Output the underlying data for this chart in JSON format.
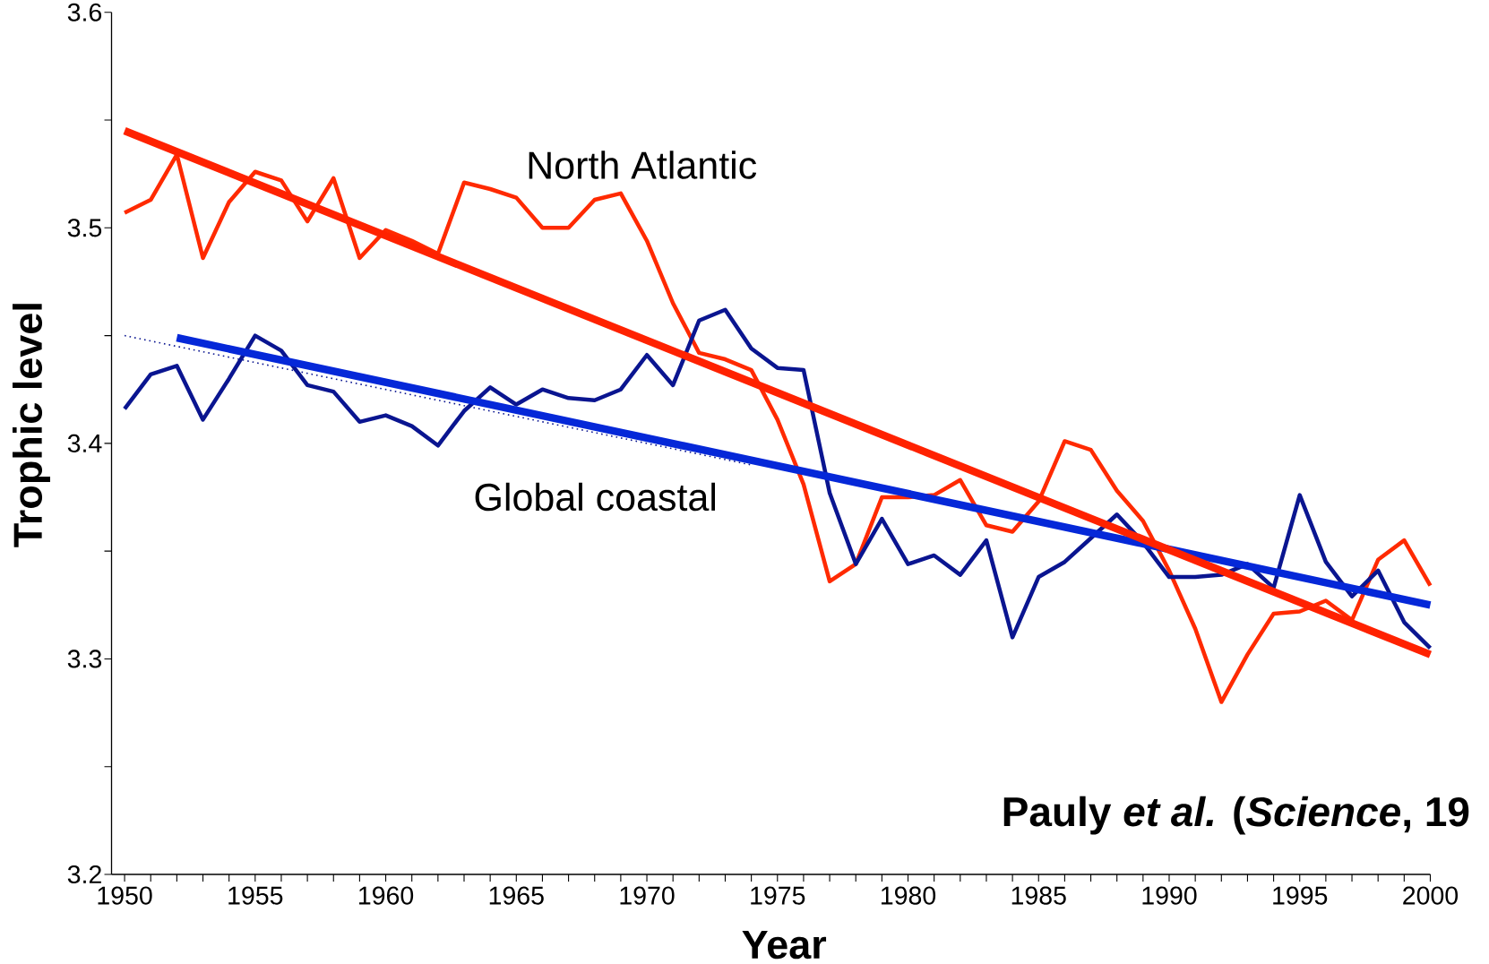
{
  "chart_data": {
    "type": "line",
    "xlabel": "Year",
    "ylabel": "Trophic level",
    "annotations": [
      "Pauly *et al.* (*Science*, 19"
    ],
    "x": [
      1950,
      1951,
      1952,
      1953,
      1954,
      1955,
      1956,
      1957,
      1958,
      1959,
      1960,
      1961,
      1962,
      1963,
      1964,
      1965,
      1966,
      1967,
      1968,
      1969,
      1970,
      1971,
      1972,
      1973,
      1974,
      1975,
      1976,
      1977,
      1978,
      1979,
      1980,
      1981,
      1982,
      1983,
      1984,
      1985,
      1986,
      1987,
      1988,
      1989,
      1990,
      1991,
      1992,
      1993,
      1994,
      1995,
      1996,
      1997,
      1998,
      1999,
      2000
    ],
    "series": [
      {
        "name": "North Atlantic",
        "color": "#ff2a00",
        "values": [
          3.507,
          3.513,
          3.534,
          3.486,
          3.512,
          3.526,
          3.522,
          3.503,
          3.523,
          3.486,
          3.499,
          3.494,
          3.488,
          3.521,
          3.518,
          3.514,
          3.5,
          3.5,
          3.513,
          3.516,
          3.494,
          3.465,
          3.442,
          3.439,
          3.434,
          3.411,
          3.381,
          3.336,
          3.344,
          3.375,
          3.375,
          3.376,
          3.383,
          3.362,
          3.359,
          3.373,
          3.401,
          3.397,
          3.378,
          3.364,
          3.341,
          3.314,
          3.28,
          3.302,
          3.321,
          3.322,
          3.327,
          3.318,
          3.346,
          3.355,
          3.334
        ]
      },
      {
        "name": "Global coastal",
        "color": "#0a1590",
        "values": [
          3.416,
          3.432,
          3.436,
          3.411,
          3.43,
          3.45,
          3.443,
          3.427,
          3.424,
          3.41,
          3.413,
          3.408,
          3.399,
          3.415,
          3.426,
          3.418,
          3.425,
          3.421,
          3.42,
          3.425,
          3.441,
          3.427,
          3.457,
          3.462,
          3.444,
          3.435,
          3.434,
          3.377,
          3.344,
          3.365,
          3.344,
          3.348,
          3.339,
          3.355,
          3.31,
          3.338,
          3.345,
          3.356,
          3.367,
          3.354,
          3.338,
          3.338,
          3.339,
          3.344,
          3.333,
          3.376,
          3.345,
          3.329,
          3.341,
          3.317,
          3.305
        ]
      },
      {
        "type": "line",
        "color": "#0a1590",
        "line_style": "dotted",
        "x": [
          1950,
          1974
        ],
        "values": [
          3.45,
          3.39
        ]
      },
      {
        "type": "line",
        "color": "#0528d8",
        "x": [
          1952,
          2000
        ],
        "values": [
          3.449,
          3.325
        ]
      },
      {
        "type": "line",
        "color": "#ff2200",
        "x": [
          1950,
          2000
        ],
        "values": [
          3.545,
          3.302
        ]
      }
    ],
    "xlim": [
      1949.5,
      2000
    ],
    "ylim": [
      3.2,
      3.6
    ],
    "xticks": [
      1950,
      {
        "value": 1951,
        "label": null
      },
      {
        "value": 1952,
        "label": null
      },
      {
        "value": 1953,
        "label": null
      },
      {
        "value": 1954,
        "label": null
      },
      1955,
      {
        "value": 1956,
        "label": null
      },
      {
        "value": 1957,
        "label": null
      },
      {
        "value": 1958,
        "label": null
      },
      {
        "value": 1959,
        "label": null
      },
      1960,
      {
        "value": 1961,
        "label": null
      },
      {
        "value": 1962,
        "label": null
      },
      {
        "value": 1963,
        "label": null
      },
      {
        "value": 1964,
        "label": null
      },
      1965,
      {
        "value": 1966,
        "label": null
      },
      {
        "value": 1967,
        "label": null
      },
      {
        "value": 1968,
        "label": null
      },
      {
        "value": 1969,
        "label": null
      },
      1970,
      {
        "value": 1971,
        "label": null
      },
      {
        "value": 1972,
        "label": null
      },
      {
        "value": 1973,
        "label": null
      },
      {
        "value": 1974,
        "label": null
      },
      1975,
      {
        "value": 1976,
        "label": null
      },
      {
        "value": 1977,
        "label": null
      },
      {
        "value": 1978,
        "label": null
      },
      {
        "value": 1979,
        "label": null
      },
      1980,
      {
        "value": 1981,
        "label": null
      },
      {
        "value": 1982,
        "label": null
      },
      {
        "value": 1983,
        "label": null
      },
      {
        "value": 1984,
        "label": null
      },
      1985,
      {
        "value": 1986,
        "label": null
      },
      {
        "value": 1987,
        "label": null
      },
      {
        "value": 1988,
        "label": null
      },
      {
        "value": 1989,
        "label": null
      },
      1990,
      {
        "value": 1991,
        "label": null
      },
      {
        "value": 1992,
        "label": null
      },
      {
        "value": 1993,
        "label": null
      },
      {
        "value": 1994,
        "label": null
      },
      1995,
      {
        "value": 1996,
        "label": null
      },
      {
        "value": 1997,
        "label": null
      },
      {
        "value": 1998,
        "label": null
      },
      {
        "value": 1999,
        "label": null
      },
      2000
    ],
    "yticks": [
      3.2,
      {
        "value": 3.25,
        "label": null
      },
      3.3,
      {
        "value": 3.35,
        "label": null
      },
      3.4,
      {
        "value": 3.45,
        "label": null
      },
      3.5,
      {
        "value": 3.55,
        "label": null
      },
      3.6
    ]
  }
}
